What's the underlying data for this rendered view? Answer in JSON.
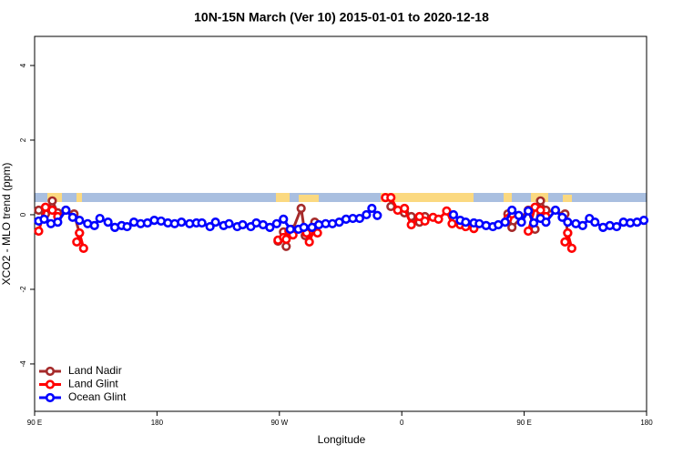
{
  "chart_data": {
    "type": "line",
    "title": "10N-15N March (Ver 10)   2015-01-01 to 2020-12-18",
    "x_label": "Longitude",
    "y_label": "XCO2 - MLO trend (ppm)",
    "xlim": [
      90,
      540
    ],
    "ylim": [
      -5.27,
      4.78
    ],
    "xticks": [
      {
        "value": 90,
        "label": "90 E"
      },
      180,
      {
        "value": 270,
        "label": "90 W"
      },
      {
        "value": 360,
        "label": "0"
      },
      {
        "value": 450,
        "label": "90 E"
      },
      {
        "value": 540,
        "label": "180"
      }
    ],
    "yticks": [
      -4,
      -2,
      0,
      2,
      4
    ],
    "legend": "bottom-left",
    "series": [
      {
        "name": "Land Nadir",
        "color": "#a52a2a",
        "x": [
          93,
          98,
          103,
          107,
          113,
          119,
          123,
          null,
          269,
          273,
          275,
          280,
          286,
          289,
          292,
          296,
          null,
          352,
          362,
          367,
          373,
          377,
          null,
          438,
          441,
          453,
          458,
          462,
          466,
          480,
          482
        ],
        "values": [
          0.12,
          0.02,
          0.37,
          0.05,
          0.12,
          0.02,
          -0.49,
          null,
          -0.71,
          -0.46,
          -0.85,
          -0.39,
          0.17,
          -0.56,
          -0.49,
          -0.2,
          null,
          0.22,
          0.05,
          -0.05,
          -0.2,
          -0.05,
          null,
          0.02,
          -0.34,
          0.12,
          -0.39,
          0.37,
          0.12,
          0.02,
          -0.49
        ]
      },
      {
        "name": "Land Glint",
        "color": "#ff0000",
        "x": [
          93,
          98,
          103,
          107,
          null,
          121,
          123,
          126,
          null,
          269,
          273,
          275,
          277,
          280,
          null,
          290,
          292,
          296,
          298,
          null,
          348,
          352,
          357,
          362,
          367,
          373,
          377,
          383,
          387,
          393,
          397,
          403,
          407,
          413,
          null,
          438,
          441,
          null,
          453,
          458,
          462,
          466,
          null,
          480,
          482,
          485
        ],
        "values": [
          -0.44,
          0.2,
          0.12,
          -0.05,
          null,
          -0.73,
          -0.49,
          -0.9,
          null,
          -0.68,
          -0.61,
          -0.66,
          -0.44,
          -0.54,
          null,
          -0.49,
          -0.73,
          -0.34,
          -0.49,
          null,
          0.46,
          0.46,
          0.12,
          0.17,
          -0.27,
          -0.05,
          -0.17,
          -0.07,
          -0.12,
          0.1,
          -0.24,
          -0.27,
          -0.32,
          -0.37,
          null,
          -0.1,
          0.02,
          null,
          -0.44,
          0.2,
          0.12,
          -0.05,
          null,
          -0.73,
          -0.49,
          -0.9
        ]
      },
      {
        "name": "Ocean Glint",
        "color": "#0000ff",
        "x": [
          93,
          97,
          102,
          107,
          113,
          118,
          123,
          129,
          134,
          138,
          144,
          149,
          154,
          158,
          163,
          168,
          173,
          178,
          183,
          188,
          193,
          198,
          204,
          209,
          213,
          219,
          223,
          229,
          233,
          239,
          243,
          249,
          253,
          258,
          263,
          268,
          273,
          278,
          284,
          288,
          294,
          299,
          304,
          309,
          314,
          319,
          324,
          329,
          334,
          338,
          342,
          null,
          398,
          403,
          407,
          413,
          417,
          422,
          427,
          431,
          436,
          441,
          446,
          448,
          453,
          457,
          462,
          466,
          473,
          478,
          482,
          488,
          493,
          498,
          502,
          508,
          513,
          518,
          523,
          528,
          533,
          538
        ],
        "values": [
          -0.17,
          -0.12,
          -0.24,
          -0.2,
          0.12,
          -0.07,
          -0.15,
          -0.24,
          -0.29,
          -0.1,
          -0.2,
          -0.34,
          -0.29,
          -0.32,
          -0.2,
          -0.24,
          -0.22,
          -0.15,
          -0.17,
          -0.22,
          -0.24,
          -0.2,
          -0.24,
          -0.22,
          -0.22,
          -0.32,
          -0.2,
          -0.29,
          -0.24,
          -0.32,
          -0.27,
          -0.32,
          -0.22,
          -0.27,
          -0.34,
          -0.24,
          -0.12,
          -0.39,
          -0.39,
          -0.34,
          -0.34,
          -0.27,
          -0.24,
          -0.24,
          -0.2,
          -0.12,
          -0.1,
          -0.1,
          0,
          0.17,
          -0.02,
          null,
          0,
          -0.15,
          -0.2,
          -0.22,
          -0.24,
          -0.29,
          -0.32,
          -0.27,
          -0.2,
          0.12,
          -0.02,
          -0.2,
          0.1,
          -0.22,
          -0.1,
          -0.2,
          0.12,
          -0.07,
          -0.2,
          -0.24,
          -0.29,
          -0.1,
          -0.2,
          -0.34,
          -0.29,
          -0.32,
          -0.2,
          -0.22,
          -0.2,
          -0.15
        ]
      }
    ]
  }
}
